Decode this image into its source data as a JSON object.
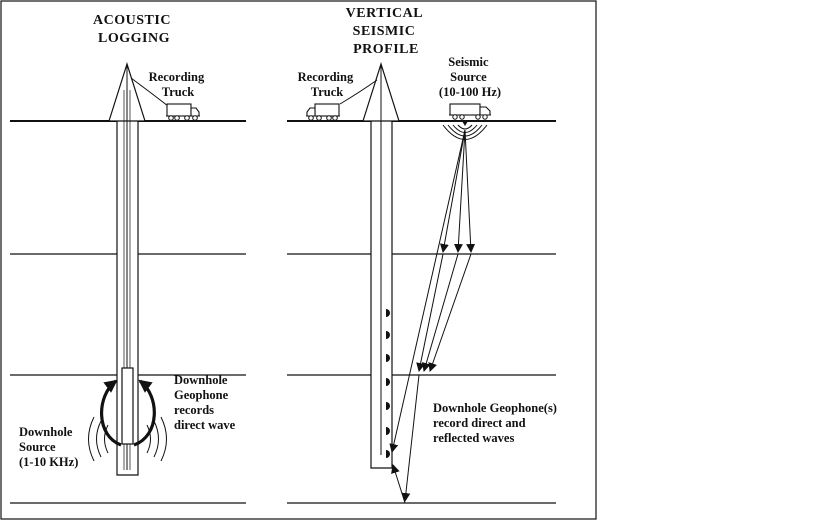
{
  "colors": {
    "ink": "#111111",
    "background": "#ffffff"
  },
  "acoustic": {
    "title_lines": [
      "ACOUSTIC",
      "LOGGING"
    ],
    "truck_lines": [
      "Recording",
      "Truck"
    ],
    "geophone_lines": [
      "Downhole",
      "Geophone",
      "records",
      "direct wave"
    ],
    "source_lines": [
      "Downhole",
      "Source",
      "(1-10 KHz)"
    ]
  },
  "vsp": {
    "title_lines": [
      "VERTICAL",
      "SEISMIC",
      "PROFILE"
    ],
    "truck_lines": [
      "Recording",
      "Truck"
    ],
    "source_lines": [
      "Seismic",
      "Source",
      "(10-100 Hz)"
    ],
    "geophone_lines": [
      "Downhole Geophone(s)",
      "record direct and",
      "reflected waves"
    ]
  }
}
